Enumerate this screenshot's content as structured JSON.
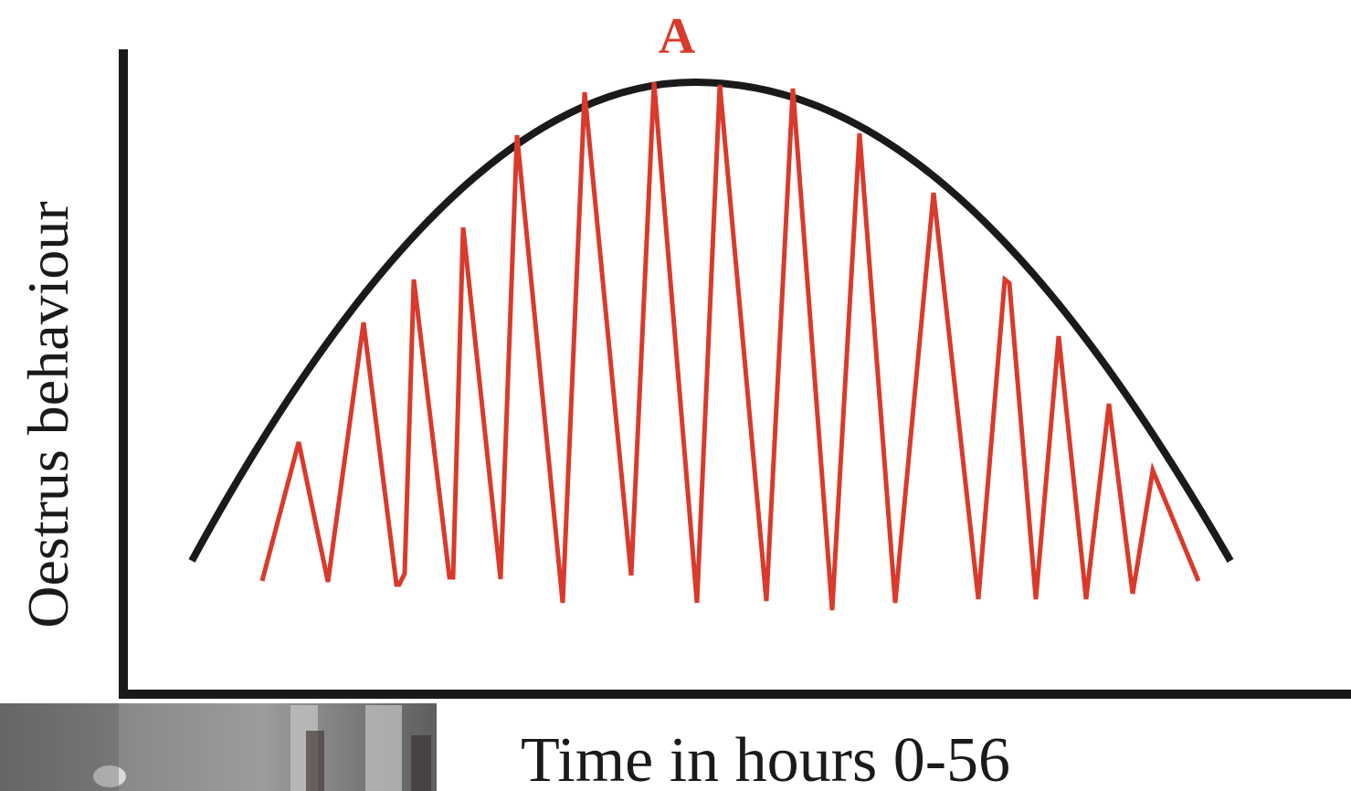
{
  "diagram": {
    "peak_label": "A",
    "y_axis_label": "Oestrus behaviour",
    "x_axis_label": "Time in hours 0-56",
    "colors": {
      "envelope": "#1a1a1a",
      "oscillation": "#d93a2b",
      "axes": "#1a1a1a",
      "peak_label": "#d93a2b"
    },
    "photo_description_icon": "photo-inset"
  }
}
